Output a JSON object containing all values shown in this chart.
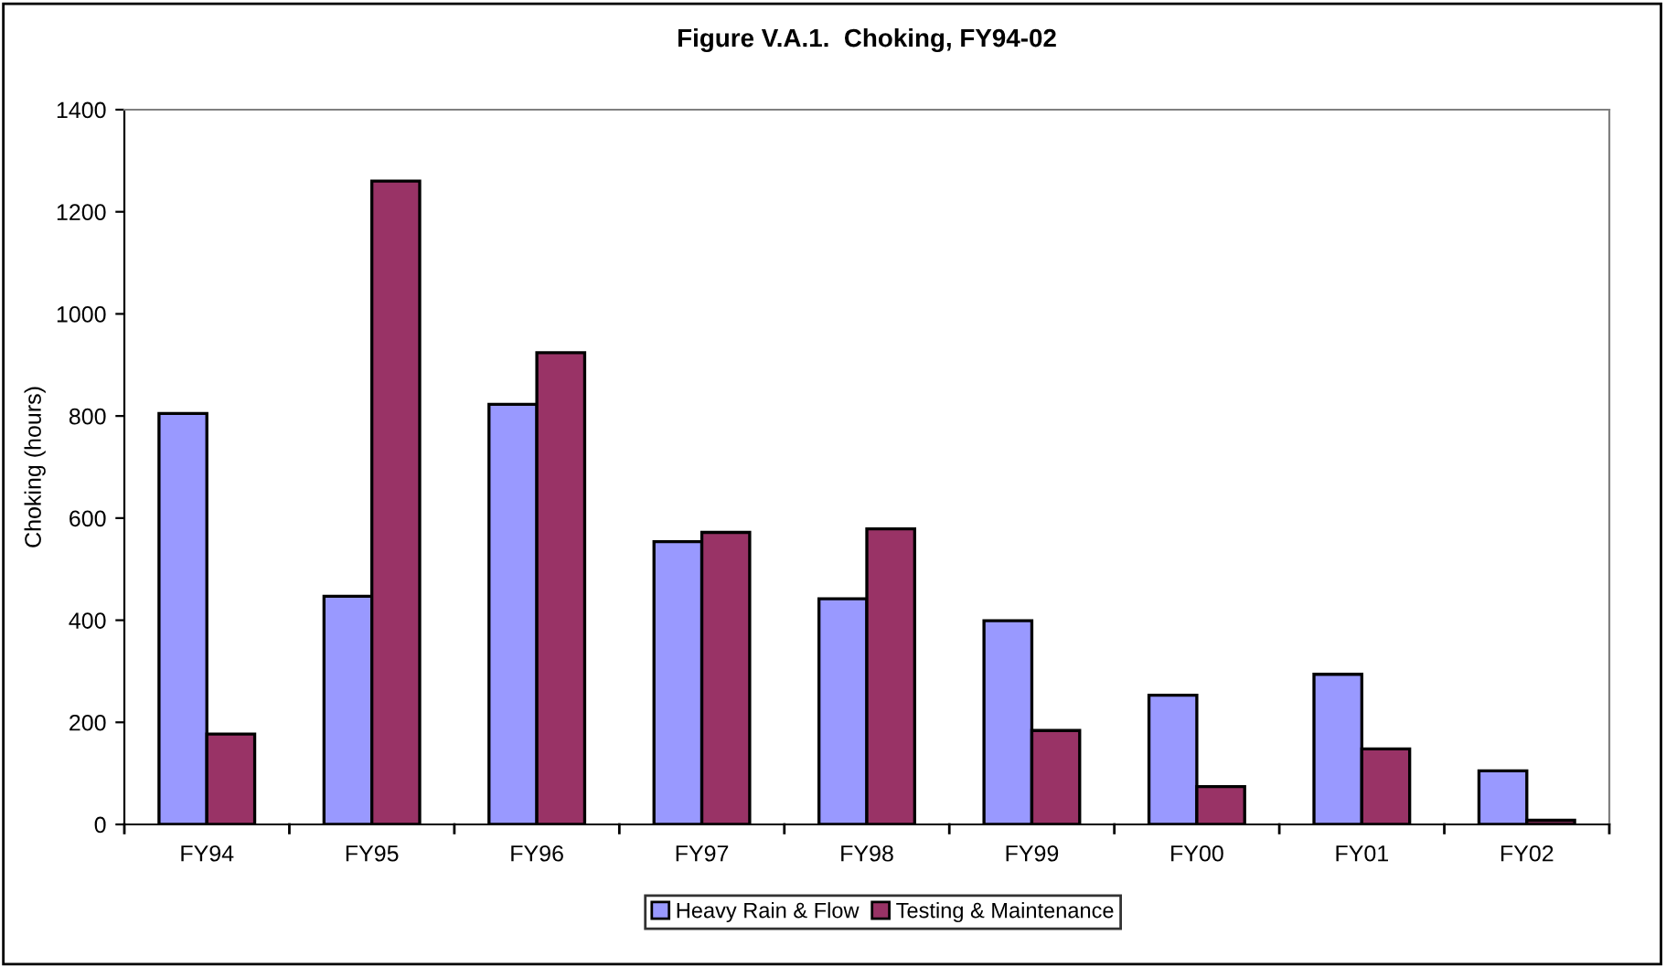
{
  "chart_data": {
    "type": "bar",
    "title": "Figure V.A.1.  Choking, FY94-02",
    "ylabel": "Choking (hours)",
    "categories": [
      "FY94",
      "FY95",
      "FY96",
      "FY97",
      "FY98",
      "FY99",
      "FY00",
      "FY01",
      "FY02"
    ],
    "series": [
      {
        "name": "Heavy Rain & Flow",
        "color": "#9999ff",
        "values": [
          805,
          447,
          823,
          554,
          442,
          399,
          253,
          294,
          105
        ]
      },
      {
        "name": "Testing & Maintenance",
        "color": "#993366",
        "values": [
          177,
          1260,
          924,
          572,
          579,
          184,
          74,
          148,
          8
        ]
      }
    ],
    "ylim": [
      0,
      1400
    ],
    "yticks": [
      0,
      200,
      400,
      600,
      800,
      1000,
      1200,
      1400
    ],
    "grid": false,
    "legend": "bottom"
  }
}
